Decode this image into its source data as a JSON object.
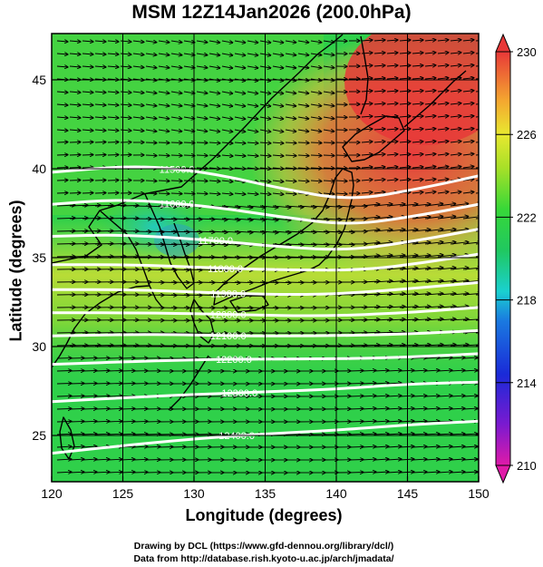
{
  "title": "MSM 12Z14Jan2026 (200.0hPa)",
  "xlabel": "Longitude (degrees)",
  "ylabel": "Latitude  (degrees)",
  "credits": {
    "line1": "Drawing by DCL (https://www.gfd-dennou.org/library/dcl/)",
    "line2": "Data from http://database.rish.kyoto-u.ac.jp/arch/jmadata/"
  },
  "map": {
    "lon_range": [
      120,
      150
    ],
    "lat_range": [
      22.4,
      47.6
    ],
    "lon_ticks": [
      120,
      125,
      130,
      135,
      140,
      145,
      150
    ],
    "lat_ticks": [
      25,
      30,
      35,
      40,
      45
    ],
    "lon_tick_labels": [
      "120",
      "125",
      "130",
      "135",
      "140",
      "145",
      "150"
    ],
    "lat_tick_labels": [
      "25",
      "30",
      "35",
      "40",
      "45"
    ]
  },
  "colorbar": {
    "min": 210,
    "max": 230,
    "tick_values": [
      210,
      214,
      218,
      222,
      226,
      230
    ],
    "tick_labels": [
      "210",
      "214",
      "218",
      "222",
      "226",
      "230"
    ],
    "colors": [
      "#e01aa8",
      "#6a1ad0",
      "#1a2ad8",
      "#1a7ae0",
      "#1ad8d0",
      "#20c860",
      "#30d838",
      "#a0e020",
      "#e8e830",
      "#f8c030",
      "#f07030",
      "#e83838"
    ]
  },
  "contours": {
    "color": "#ffffff",
    "lines": [
      {
        "label": "11500.0",
        "points": [
          [
            120,
            39.8
          ],
          [
            126,
            40.2
          ],
          [
            131,
            39.8
          ],
          [
            136,
            38.9
          ],
          [
            141,
            38.2
          ],
          [
            146,
            38.9
          ],
          [
            150,
            39.6
          ]
        ]
      },
      {
        "label": "11600.0",
        "points": [
          [
            120,
            38.0
          ],
          [
            125,
            38.3
          ],
          [
            131,
            37.9
          ],
          [
            136,
            37.3
          ],
          [
            141,
            36.8
          ],
          [
            146,
            37.4
          ],
          [
            150,
            38.0
          ]
        ]
      },
      {
        "label": "11700.0",
        "points": [
          [
            120,
            36.2
          ],
          [
            125,
            36.3
          ],
          [
            131,
            36.0
          ],
          [
            136,
            35.6
          ],
          [
            141,
            35.4
          ],
          [
            146,
            36.0
          ],
          [
            150,
            36.6
          ]
        ]
      },
      {
        "label": "11800.0",
        "points": [
          [
            120,
            34.6
          ],
          [
            126,
            34.6
          ],
          [
            132,
            34.4
          ],
          [
            137,
            34.3
          ],
          [
            142,
            34.3
          ],
          [
            146,
            34.7
          ],
          [
            150,
            35.2
          ]
        ]
      },
      {
        "label": "11900.0",
        "points": [
          [
            120,
            33.2
          ],
          [
            126,
            33.2
          ],
          [
            132,
            33.0
          ],
          [
            138,
            32.9
          ],
          [
            143,
            33.1
          ],
          [
            150,
            33.6
          ]
        ]
      },
      {
        "label": "12000.0",
        "points": [
          [
            120,
            31.9
          ],
          [
            127,
            31.9
          ],
          [
            133,
            31.8
          ],
          [
            139,
            31.7
          ],
          [
            145,
            31.9
          ],
          [
            150,
            32.2
          ]
        ]
      },
      {
        "label": "12100.0",
        "points": [
          [
            120,
            30.6
          ],
          [
            127,
            30.7
          ],
          [
            133,
            30.6
          ],
          [
            139,
            30.6
          ],
          [
            145,
            30.7
          ],
          [
            150,
            30.9
          ]
        ]
      },
      {
        "label": "12200.0",
        "points": [
          [
            120,
            29.0
          ],
          [
            127,
            29.2
          ],
          [
            133,
            29.3
          ],
          [
            140,
            29.3
          ],
          [
            145,
            29.4
          ],
          [
            150,
            29.6
          ]
        ]
      },
      {
        "label": "12300.0",
        "points": [
          [
            120,
            26.9
          ],
          [
            127,
            27.2
          ],
          [
            133,
            27.4
          ],
          [
            140,
            27.6
          ],
          [
            145,
            27.9
          ],
          [
            150,
            28.0
          ]
        ]
      },
      {
        "label": "12400.0",
        "points": [
          [
            120,
            24.0
          ],
          [
            127,
            24.6
          ],
          [
            133,
            25.0
          ],
          [
            140,
            25.3
          ],
          [
            145,
            25.6
          ],
          [
            150,
            25.8
          ]
        ]
      }
    ],
    "label_lons": [
      128.8,
      128.8,
      131.5,
      132.2,
      132.4,
      132.4,
      132.4,
      132.8,
      133.2,
      133.0
    ]
  }
}
